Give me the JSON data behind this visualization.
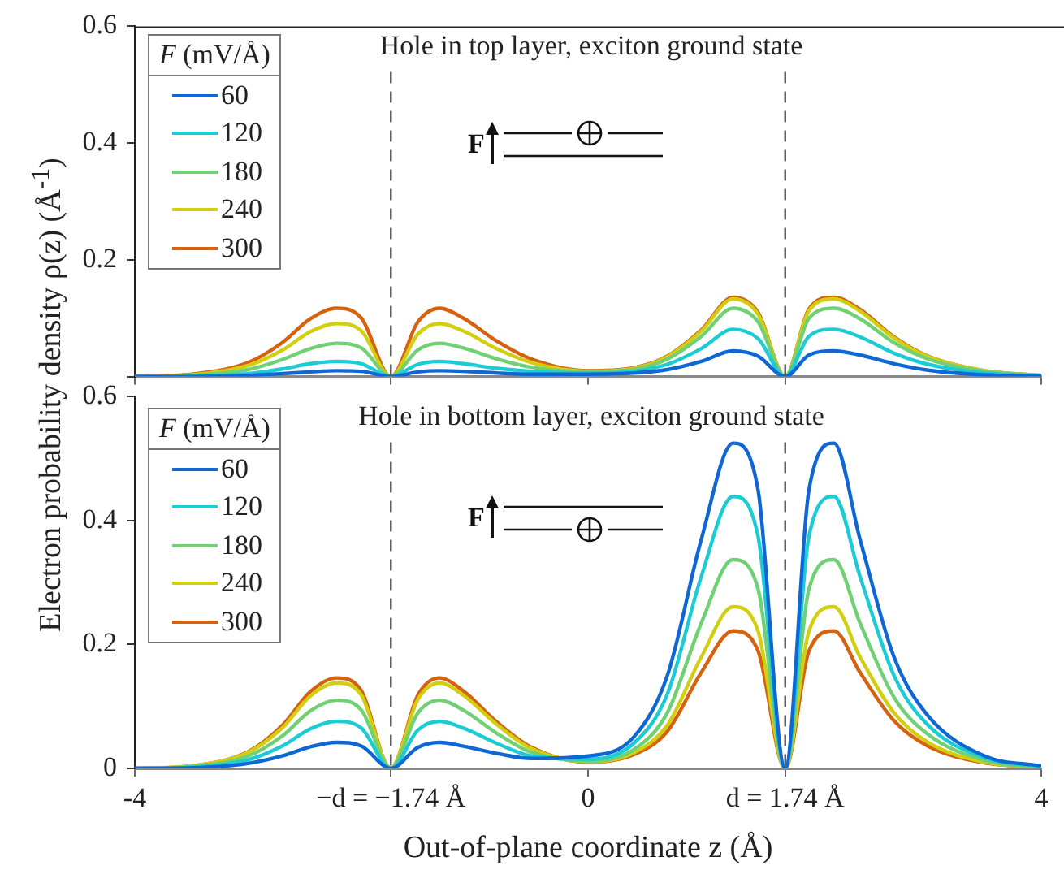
{
  "chart_data": [
    {
      "type": "line",
      "title": "Hole in top layer, exciton ground state",
      "ylabel": "Electron probability density ρ(z) (Å$^{-1}$)",
      "legend_title": "F (mV/Å)",
      "legend": "top left",
      "marker": "none",
      "tick_labels": "y",
      "x": [
        -4,
        -3.5,
        -3,
        -2.7,
        -2.45,
        -2.22,
        -2,
        -1.74,
        -1.5,
        -1.31,
        -1.1,
        -0.8,
        -0.5,
        0,
        0.4,
        0.7,
        1.0,
        1.28,
        1.5,
        1.74,
        1.95,
        2.17,
        2.4,
        2.7,
        3,
        3.5,
        4
      ],
      "xlim": [
        -4,
        4
      ],
      "xticks": [
        -4,
        -1.74,
        0,
        1.74,
        4
      ],
      "ylim": [
        0,
        0.6
      ],
      "yticks": [
        {
          "value": 0,
          "label": null
        },
        0.2,
        0.4,
        0.6
      ],
      "ref_lines": [
        {
          "axis": "x",
          "value": -1.74,
          "color": "#555555",
          "line_style": "dashed"
        },
        {
          "axis": "x",
          "value": 1.74,
          "color": "#555555",
          "line_style": "dashed"
        }
      ],
      "annotations": [
        "F"
      ],
      "series": [
        {
          "name": "60",
          "color": "#0f67d4",
          "values": [
            0,
            0,
            0.002,
            0.005,
            0.008,
            0.01,
            0.009,
            0,
            0.008,
            0.01,
            0.009,
            0.006,
            0.004,
            0.004,
            0.006,
            0.012,
            0.026,
            0.044,
            0.035,
            0,
            0.037,
            0.044,
            0.037,
            0.022,
            0.011,
            0.003,
            0.001
          ]
        },
        {
          "name": "120",
          "color": "#1ccbd4",
          "values": [
            0,
            0.001,
            0.005,
            0.013,
            0.022,
            0.026,
            0.022,
            0,
            0.021,
            0.026,
            0.022,
            0.014,
            0.009,
            0.006,
            0.009,
            0.021,
            0.048,
            0.081,
            0.065,
            0,
            0.069,
            0.081,
            0.068,
            0.04,
            0.021,
            0.006,
            0.001
          ]
        },
        {
          "name": "180",
          "color": "#6fd173",
          "values": [
            0,
            0.002,
            0.012,
            0.029,
            0.048,
            0.057,
            0.049,
            0,
            0.046,
            0.057,
            0.049,
            0.03,
            0.016,
            0.008,
            0.012,
            0.03,
            0.069,
            0.117,
            0.094,
            0,
            0.1,
            0.117,
            0.099,
            0.058,
            0.03,
            0.009,
            0.002
          ]
        },
        {
          "name": "240",
          "color": "#d2cf10",
          "values": [
            0,
            0.003,
            0.019,
            0.045,
            0.077,
            0.091,
            0.078,
            0,
            0.073,
            0.091,
            0.078,
            0.047,
            0.024,
            0.009,
            0.014,
            0.034,
            0.078,
            0.133,
            0.107,
            0,
            0.113,
            0.133,
            0.112,
            0.066,
            0.034,
            0.01,
            0.002
          ]
        },
        {
          "name": "300",
          "color": "#d6620f",
          "values": [
            0,
            0.004,
            0.024,
            0.058,
            0.099,
            0.117,
            0.1,
            0,
            0.094,
            0.117,
            0.1,
            0.06,
            0.03,
            0.01,
            0.015,
            0.035,
            0.08,
            0.136,
            0.11,
            0,
            0.116,
            0.136,
            0.115,
            0.068,
            0.035,
            0.01,
            0.002
          ]
        }
      ]
    },
    {
      "type": "line",
      "title": "Hole in bottom layer, exciton ground state",
      "xlabel": "Out-of-plane coordinate z (Å)",
      "legend_title": "F (mV/Å)",
      "legend": "top left",
      "marker": "none",
      "x": [
        -4,
        -3.5,
        -3,
        -2.7,
        -2.45,
        -2.22,
        -2,
        -1.74,
        -1.5,
        -1.31,
        -1.1,
        -0.8,
        -0.5,
        0,
        0.4,
        0.7,
        1.0,
        1.28,
        1.5,
        1.74,
        1.95,
        2.17,
        2.4,
        2.7,
        3,
        3.5,
        4
      ],
      "xlim": [
        -4,
        4
      ],
      "xticks": [
        -4,
        {
          "value": -1.74,
          "label": "−d = −1.74 Å"
        },
        0,
        {
          "value": 1.74,
          "label": "d = 1.74 Å"
        },
        4
      ],
      "ylim": [
        0,
        0.6
      ],
      "yticks": [
        0,
        0.2,
        0.4,
        0.6
      ],
      "ref_lines": [
        {
          "axis": "x",
          "value": -1.74,
          "color": "#555555",
          "line_style": "dashed"
        },
        {
          "axis": "x",
          "value": 1.74,
          "color": "#555555",
          "line_style": "dashed"
        }
      ],
      "annotations": [
        "F"
      ],
      "series": [
        {
          "name": "60",
          "color": "#0f67d4",
          "values": [
            0,
            0.001,
            0.008,
            0.02,
            0.035,
            0.042,
            0.036,
            0,
            0.034,
            0.042,
            0.036,
            0.024,
            0.016,
            0.02,
            0.05,
            0.15,
            0.37,
            0.525,
            0.45,
            0,
            0.45,
            0.525,
            0.37,
            0.18,
            0.085,
            0.02,
            0.004
          ]
        },
        {
          "name": "120",
          "color": "#1ccbd4",
          "values": [
            0,
            0.002,
            0.014,
            0.036,
            0.064,
            0.076,
            0.065,
            0,
            0.062,
            0.076,
            0.065,
            0.04,
            0.02,
            0.015,
            0.04,
            0.12,
            0.31,
            0.439,
            0.375,
            0,
            0.375,
            0.439,
            0.31,
            0.15,
            0.07,
            0.017,
            0.003
          ]
        },
        {
          "name": "180",
          "color": "#6fd173",
          "values": [
            0,
            0.003,
            0.02,
            0.052,
            0.093,
            0.11,
            0.094,
            0,
            0.09,
            0.11,
            0.094,
            0.056,
            0.026,
            0.012,
            0.03,
            0.09,
            0.235,
            0.337,
            0.29,
            0,
            0.29,
            0.337,
            0.235,
            0.115,
            0.055,
            0.013,
            0.002
          ]
        },
        {
          "name": "240",
          "color": "#d2cf10",
          "values": [
            0,
            0.004,
            0.026,
            0.065,
            0.117,
            0.138,
            0.118,
            0,
            0.112,
            0.138,
            0.118,
            0.07,
            0.032,
            0.011,
            0.025,
            0.07,
            0.18,
            0.261,
            0.222,
            0,
            0.222,
            0.261,
            0.18,
            0.09,
            0.042,
            0.01,
            0.002
          ]
        },
        {
          "name": "300",
          "color": "#d6620f",
          "values": [
            0,
            0.004,
            0.027,
            0.069,
            0.124,
            0.146,
            0.125,
            0,
            0.119,
            0.146,
            0.125,
            0.074,
            0.034,
            0.01,
            0.022,
            0.06,
            0.155,
            0.222,
            0.19,
            0,
            0.19,
            0.222,
            0.155,
            0.077,
            0.036,
            0.009,
            0.002
          ]
        }
      ]
    }
  ]
}
